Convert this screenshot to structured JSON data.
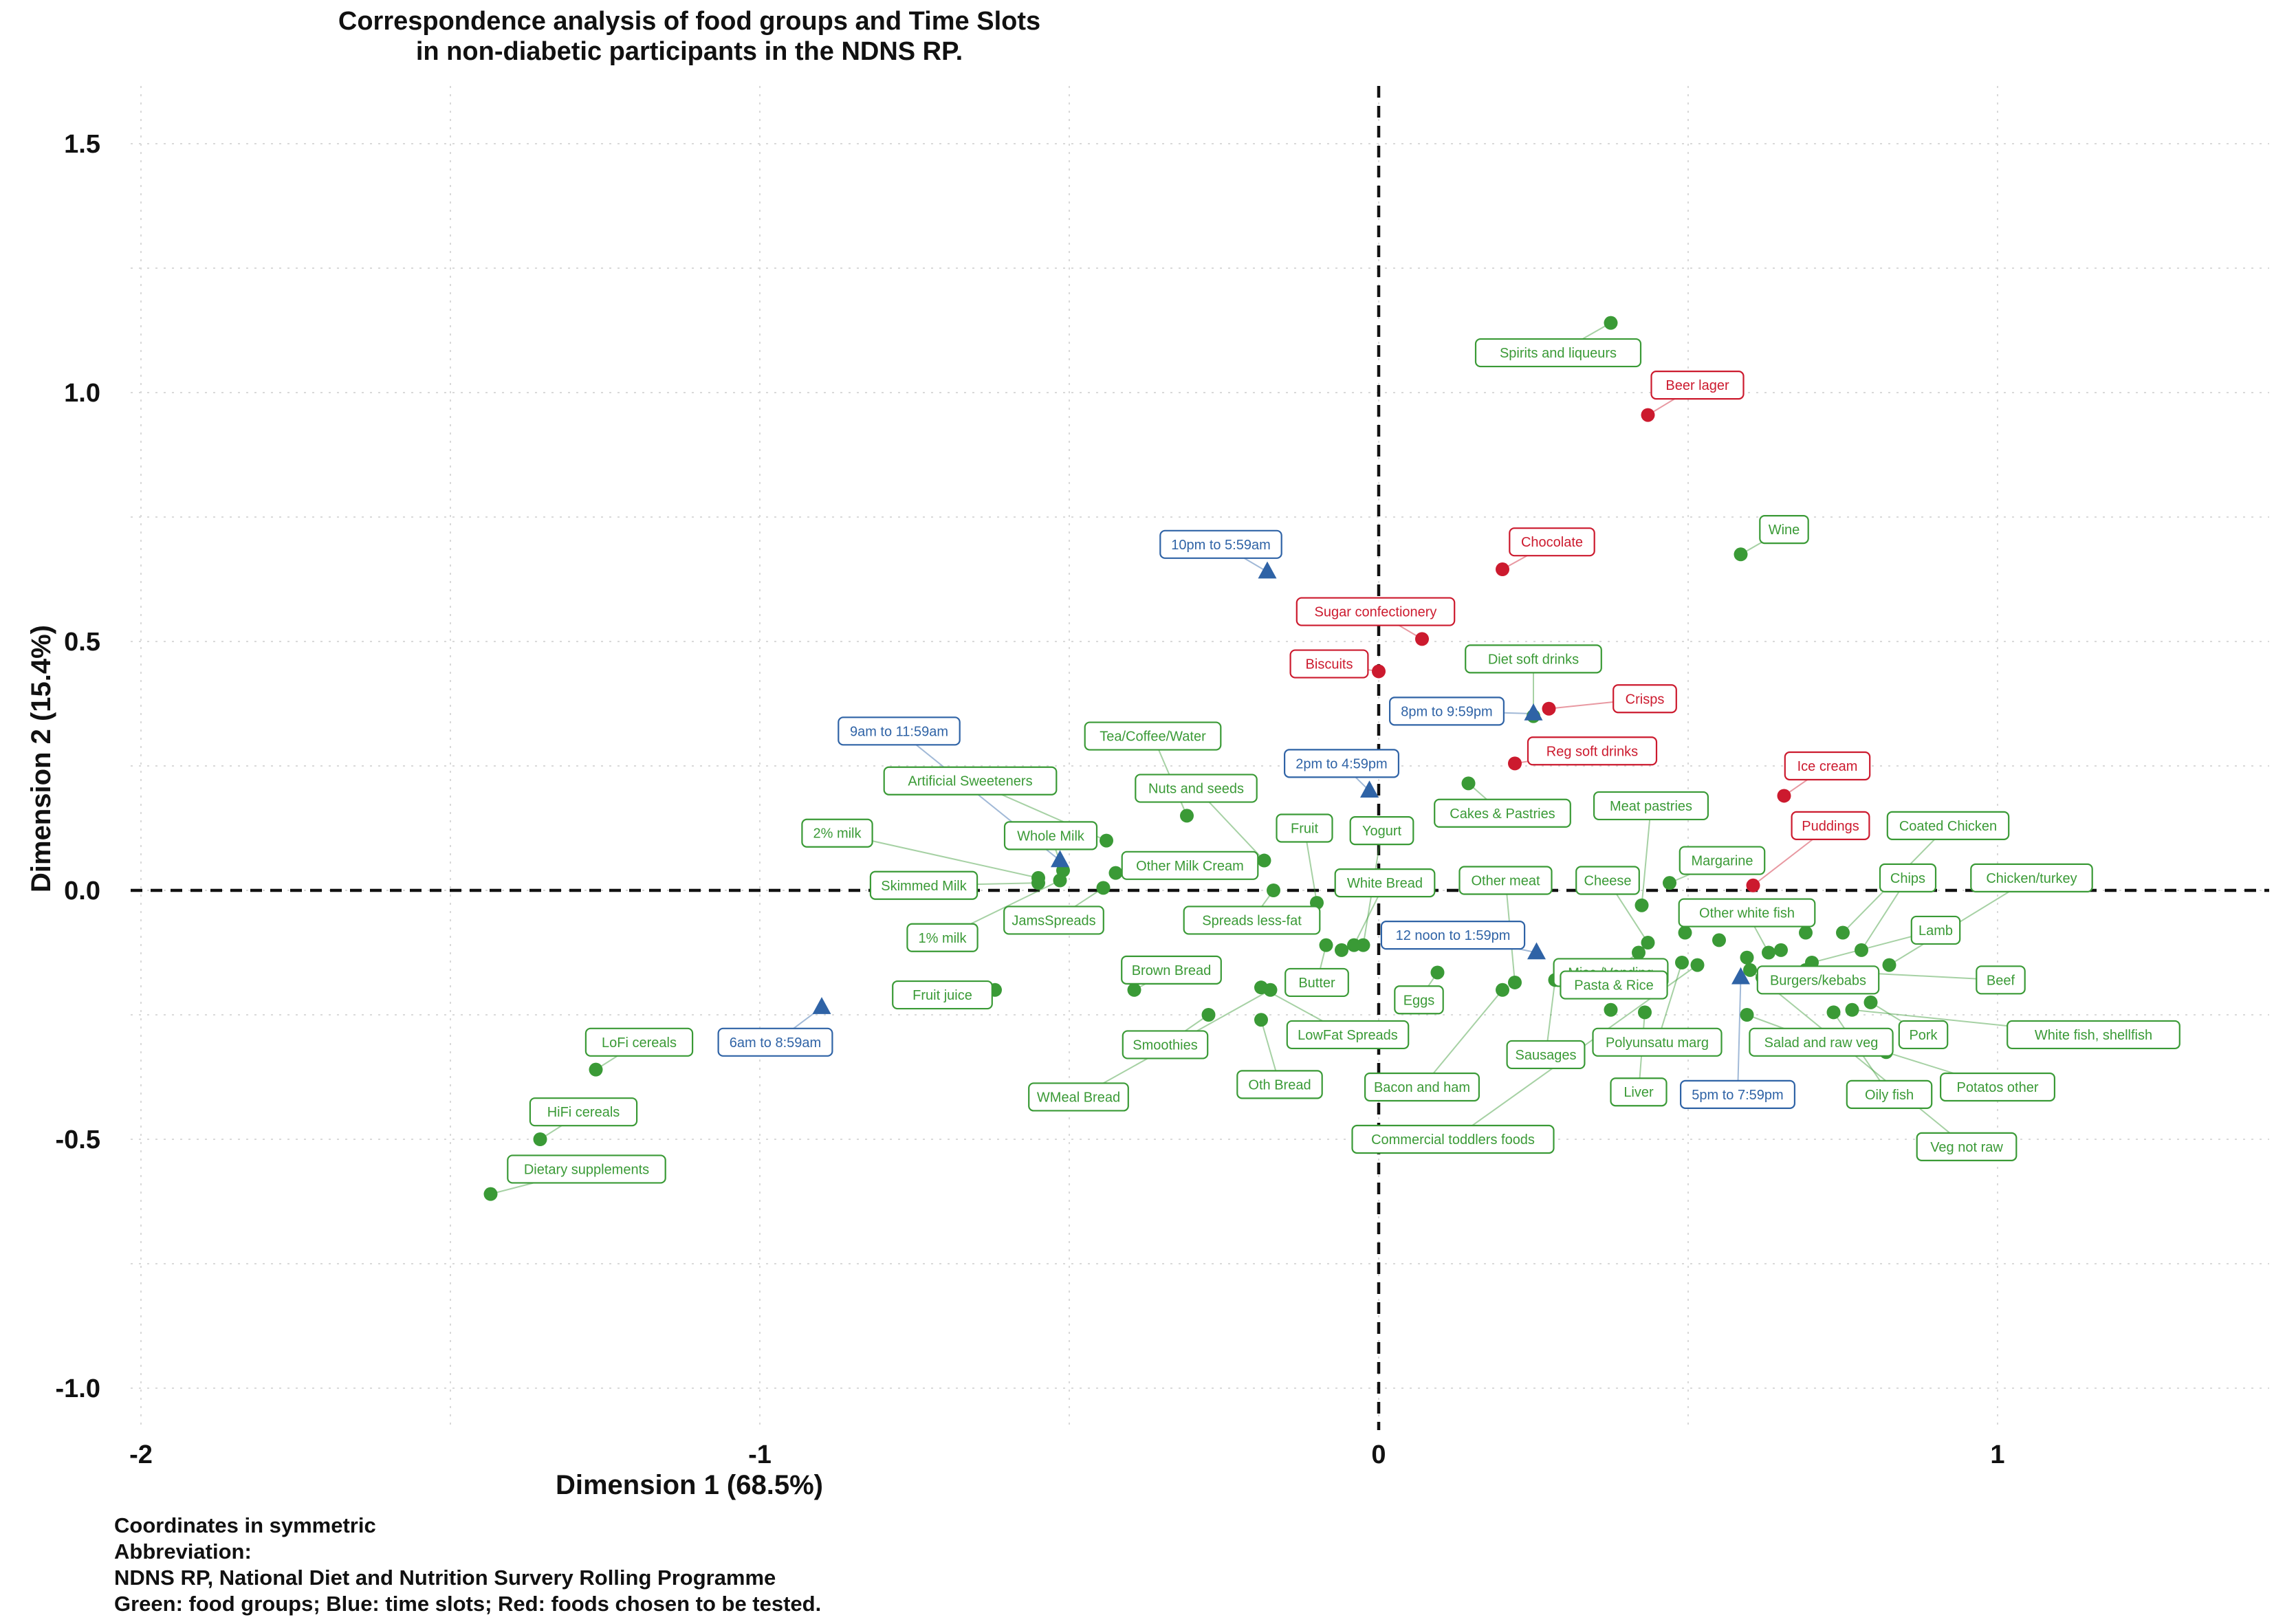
{
  "chart_data": {
    "type": "scatter",
    "title": "Correspondence analysis of food groups and Time Slots",
    "subtitle": "in non-diabetic participants in the NDNS RP.",
    "xlabel": "Dimension 1 (68.5%)",
    "ylabel": "Dimension 2 (15.4%)",
    "xlim": [
      -2.0,
      1.43
    ],
    "ylim": [
      -1.1,
      1.62
    ],
    "x_ticks": [
      -2,
      -1,
      0,
      1
    ],
    "x_tick_labels": [
      "-2",
      "-1",
      "0",
      "1"
    ],
    "y_ticks": [
      1.5,
      1.0,
      0.5,
      0.0,
      -0.5,
      -1.0
    ],
    "y_tick_labels": [
      "1.5",
      "1.0",
      "0.5",
      "0.0",
      "-0.5",
      "-1.0"
    ],
    "grid": true,
    "reference_lines": {
      "x": 0,
      "y": 0,
      "style": "dashed"
    },
    "colors": {
      "food": "#3a9a36",
      "time": "#2f63a6",
      "tested": "#cc1a2e"
    },
    "series": [
      {
        "group": "food",
        "marker": "circle",
        "points": [
          {
            "label": "Spirits and liqueurs",
            "x": 0.375,
            "y": 1.14,
            "lx": 0.29,
            "ly": 1.08
          },
          {
            "label": "Wine",
            "x": 0.585,
            "y": 0.675,
            "lx": 0.655,
            "ly": 0.725
          },
          {
            "label": "Diet soft drinks",
            "x": 0.25,
            "y": 0.35,
            "lx": 0.25,
            "ly": 0.465
          },
          {
            "label": "Tea/Coffee/Water",
            "x": -0.31,
            "y": 0.15,
            "lx": -0.365,
            "ly": 0.31
          },
          {
            "label": "Artificial Sweeteners",
            "x": -0.44,
            "y": 0.1,
            "lx": -0.66,
            "ly": 0.22
          },
          {
            "label": "Nuts and seeds",
            "x": -0.185,
            "y": 0.06,
            "lx": -0.295,
            "ly": 0.205
          },
          {
            "label": "Cakes & Pastries",
            "x": 0.145,
            "y": 0.215,
            "lx": 0.2,
            "ly": 0.155
          },
          {
            "label": "Meat pastries",
            "x": 0.425,
            "y": -0.03,
            "lx": 0.44,
            "ly": 0.17
          },
          {
            "label": "Coated Chicken",
            "x": 0.75,
            "y": -0.085,
            "lx": 0.92,
            "ly": 0.13
          },
          {
            "label": "2% milk",
            "x": -0.55,
            "y": 0.025,
            "lx": -0.875,
            "ly": 0.115
          },
          {
            "label": "Whole Milk",
            "x": -0.51,
            "y": 0.04,
            "lx": -0.53,
            "ly": 0.11
          },
          {
            "label": "Fruit",
            "x": -0.1,
            "y": -0.025,
            "lx": -0.12,
            "ly": 0.125
          },
          {
            "label": "Yogurt",
            "x": -0.025,
            "y": -0.11,
            "lx": 0.005,
            "ly": 0.12
          },
          {
            "label": "Other Milk Cream",
            "x": -0.425,
            "y": 0.035,
            "lx": -0.305,
            "ly": 0.05
          },
          {
            "label": "Margarine",
            "x": 0.47,
            "y": 0.015,
            "lx": 0.555,
            "ly": 0.06
          },
          {
            "label": "Chips",
            "x": 0.78,
            "y": -0.12,
            "lx": 0.855,
            "ly": 0.025
          },
          {
            "label": "Chicken/turkey",
            "x": 0.825,
            "y": -0.15,
            "lx": 1.055,
            "ly": 0.025
          },
          {
            "label": "Skimmed Milk",
            "x": -0.55,
            "y": 0.015,
            "lx": -0.735,
            "ly": 0.01
          },
          {
            "label": "White Bread",
            "x": -0.04,
            "y": -0.11,
            "lx": 0.01,
            "ly": 0.015
          },
          {
            "label": "Other meat",
            "x": 0.22,
            "y": -0.185,
            "lx": 0.205,
            "ly": 0.02
          },
          {
            "label": "Cheese",
            "x": 0.435,
            "y": -0.105,
            "lx": 0.37,
            "ly": 0.02
          },
          {
            "label": "Other white fish",
            "x": 0.63,
            "y": -0.125,
            "lx": 0.595,
            "ly": -0.045
          },
          {
            "label": "JamsSpreads",
            "x": -0.445,
            "y": 0.005,
            "lx": -0.525,
            "ly": -0.06
          },
          {
            "label": "Spreads less-fat",
            "x": -0.17,
            "y": 0.0,
            "lx": -0.205,
            "ly": -0.06
          },
          {
            "label": "Lamb",
            "x": 0.7,
            "y": -0.145,
            "lx": 0.9,
            "ly": -0.08
          },
          {
            "label": "1% milk",
            "x": -0.515,
            "y": 0.02,
            "lx": -0.705,
            "ly": -0.095
          },
          {
            "label": "Misc./Vending",
            "x": 0.42,
            "y": -0.125,
            "lx": 0.375,
            "ly": -0.165
          },
          {
            "label": "Brown Bread",
            "x": -0.395,
            "y": -0.2,
            "lx": -0.335,
            "ly": -0.16
          },
          {
            "label": "Burgers/kebabs",
            "x": 0.62,
            "y": -0.175,
            "lx": 0.71,
            "ly": -0.18
          },
          {
            "label": "Beef",
            "x": 0.69,
            "y": -0.16,
            "lx": 1.005,
            "ly": -0.18
          },
          {
            "label": "Pasta & Rice",
            "x": 0.295,
            "y": -0.175,
            "lx": 0.38,
            "ly": -0.19
          },
          {
            "label": "Butter",
            "x": -0.085,
            "y": -0.11,
            "lx": -0.1,
            "ly": -0.185
          },
          {
            "label": "Fruit juice",
            "x": -0.62,
            "y": -0.2,
            "lx": -0.705,
            "ly": -0.21
          },
          {
            "label": "Eggs",
            "x": 0.095,
            "y": -0.165,
            "lx": 0.065,
            "ly": -0.22
          },
          {
            "label": "Smoothies",
            "x": -0.275,
            "y": -0.25,
            "lx": -0.345,
            "ly": -0.31
          },
          {
            "label": "LowFat Spreads",
            "x": -0.19,
            "y": -0.195,
            "lx": -0.05,
            "ly": -0.29
          },
          {
            "label": "Polyunsatu marg",
            "x": 0.49,
            "y": -0.145,
            "lx": 0.45,
            "ly": -0.305
          },
          {
            "label": "Salad and raw veg",
            "x": 0.595,
            "y": -0.25,
            "lx": 0.715,
            "ly": -0.305
          },
          {
            "label": "Pork",
            "x": 0.795,
            "y": -0.225,
            "lx": 0.88,
            "ly": -0.29
          },
          {
            "label": "White fish, shellfish",
            "x": 0.765,
            "y": -0.24,
            "lx": 1.155,
            "ly": -0.29
          },
          {
            "label": "Sausages",
            "x": 0.285,
            "y": -0.18,
            "lx": 0.27,
            "ly": -0.33
          },
          {
            "label": "Oth Bread",
            "x": -0.19,
            "y": -0.26,
            "lx": -0.16,
            "ly": -0.39
          },
          {
            "label": "Bacon and ham",
            "x": 0.2,
            "y": -0.2,
            "lx": 0.07,
            "ly": -0.395
          },
          {
            "label": "Potatos other",
            "x": 0.82,
            "y": -0.325,
            "lx": 1.0,
            "ly": -0.395
          },
          {
            "label": "Oily fish",
            "x": 0.735,
            "y": -0.245,
            "lx": 0.825,
            "ly": -0.41
          },
          {
            "label": "Liver",
            "x": 0.43,
            "y": -0.245,
            "lx": 0.42,
            "ly": -0.405
          },
          {
            "label": "WMeal Bread",
            "x": -0.175,
            "y": -0.2,
            "lx": -0.485,
            "ly": -0.415
          },
          {
            "label": "Commercial toddlers foods",
            "x": 0.515,
            "y": -0.15,
            "lx": 0.12,
            "ly": -0.5
          },
          {
            "label": "Veg not raw",
            "x": 0.6,
            "y": -0.16,
            "lx": 0.95,
            "ly": -0.515
          },
          {
            "label": "LoFi cereals",
            "x": -1.265,
            "y": -0.36,
            "lx": -1.195,
            "ly": -0.305
          },
          {
            "label": "HiFi cereals",
            "x": -1.355,
            "y": -0.5,
            "lx": -1.285,
            "ly": -0.445
          },
          {
            "label": "Dietary supplements",
            "x": -1.435,
            "y": -0.61,
            "lx": -1.28,
            "ly": -0.56
          },
          {
            "label": "",
            "x": -0.06,
            "y": -0.12
          },
          {
            "label": "",
            "x": 0.375,
            "y": -0.24
          },
          {
            "label": "",
            "x": 0.55,
            "y": -0.1
          },
          {
            "label": "",
            "x": 0.495,
            "y": -0.085
          },
          {
            "label": "",
            "x": 0.69,
            "y": -0.085
          },
          {
            "label": "",
            "x": 0.65,
            "y": -0.12
          },
          {
            "label": "",
            "x": 0.595,
            "y": -0.135
          }
        ]
      },
      {
        "group": "tested",
        "marker": "circle",
        "points": [
          {
            "label": "Beer lager",
            "x": 0.435,
            "y": 0.955,
            "lx": 0.515,
            "ly": 1.015
          },
          {
            "label": "Chocolate",
            "x": 0.2,
            "y": 0.645,
            "lx": 0.28,
            "ly": 0.7
          },
          {
            "label": "Sugar confectionery",
            "x": 0.07,
            "y": 0.505,
            "lx": -0.005,
            "ly": 0.56
          },
          {
            "label": "Biscuits",
            "x": 0.0,
            "y": 0.44,
            "lx": -0.08,
            "ly": 0.455
          },
          {
            "label": "Crisps",
            "x": 0.275,
            "y": 0.365,
            "lx": 0.43,
            "ly": 0.385
          },
          {
            "label": "Reg soft drinks",
            "x": 0.22,
            "y": 0.255,
            "lx": 0.345,
            "ly": 0.28
          },
          {
            "label": "Ice cream",
            "x": 0.655,
            "y": 0.19,
            "lx": 0.725,
            "ly": 0.25
          },
          {
            "label": "Puddings",
            "x": 0.605,
            "y": 0.01,
            "lx": 0.73,
            "ly": 0.13
          }
        ]
      },
      {
        "group": "time",
        "marker": "triangle",
        "points": [
          {
            "label": "10pm to 5:59am",
            "x": -0.18,
            "y": 0.64,
            "lx": -0.255,
            "ly": 0.695
          },
          {
            "label": "9am to 11:59am",
            "x": -0.515,
            "y": 0.06,
            "lx": -0.775,
            "ly": 0.32
          },
          {
            "label": "8pm to 9:59pm",
            "x": 0.25,
            "y": 0.355,
            "lx": 0.11,
            "ly": 0.36
          },
          {
            "label": "2pm to 4:59pm",
            "x": -0.015,
            "y": 0.2,
            "lx": -0.06,
            "ly": 0.255
          },
          {
            "label": "12 noon to 1:59pm",
            "x": 0.255,
            "y": -0.125,
            "lx": 0.12,
            "ly": -0.09
          },
          {
            "label": "6am to 8:59am",
            "x": -0.9,
            "y": -0.235,
            "lx": -0.975,
            "ly": -0.305
          },
          {
            "label": "5pm to 7:59pm",
            "x": 0.585,
            "y": -0.175,
            "lx": 0.58,
            "ly": -0.41
          }
        ]
      }
    ],
    "caption": [
      "Coordinates in symmetric",
      "Abbreviation:",
      "NDNS RP, National Diet and Nutrition Survery Rolling Programme",
      "Green: food groups; Blue: time slots; Red: foods chosen to be tested."
    ]
  }
}
